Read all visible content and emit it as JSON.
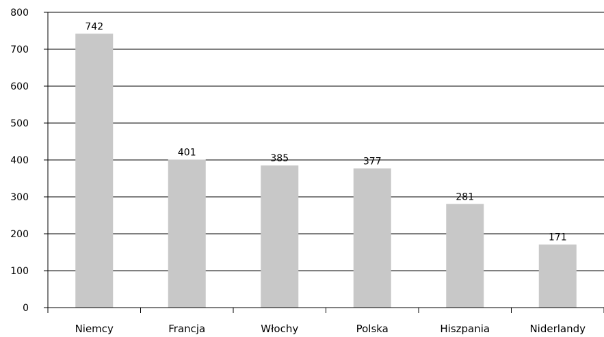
{
  "chart_data": {
    "type": "bar",
    "title": "",
    "xlabel": "",
    "ylabel": "",
    "categories": [
      "Niemcy",
      "Francja",
      "Włochy",
      "Polska",
      "Hiszpania",
      "Niderlandy"
    ],
    "values": [
      742,
      401,
      385,
      377,
      281,
      171
    ],
    "data_labels": [
      "742",
      "401",
      "385",
      "377",
      "281",
      "171"
    ],
    "ylim": [
      0,
      800
    ],
    "y_ticks": [
      0,
      100,
      200,
      300,
      400,
      500,
      600,
      700,
      800
    ],
    "y_tick_labels": [
      "0",
      "100",
      "200",
      "300",
      "400",
      "500",
      "600",
      "700",
      "800"
    ],
    "grid": "horizontal",
    "legend": "none",
    "colors": {
      "bar": "#c8c8c8",
      "grid": "#000000",
      "axis": "#000000",
      "text": "#000000"
    }
  }
}
